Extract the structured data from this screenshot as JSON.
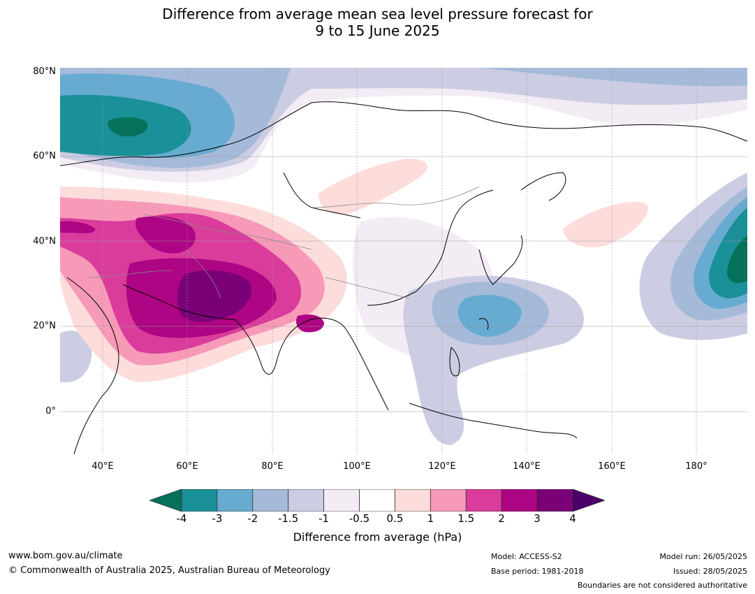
{
  "title_line1": "Difference from average mean sea level pressure forecast for",
  "title_line2": "9 to 15 June 2025",
  "lat_labels": [
    "80°N",
    "60°N",
    "40°N",
    "20°N",
    "0°"
  ],
  "lon_labels": [
    "40°E",
    "60°E",
    "80°E",
    "100°E",
    "120°E",
    "140°E",
    "160°E",
    "180°"
  ],
  "colorbar": {
    "ticks": [
      "-4",
      "-3",
      "-2",
      "-1.5",
      "-1",
      "-0.5",
      "0.5",
      "1",
      "1.5",
      "2",
      "3",
      "4"
    ],
    "colors": [
      "#05715b",
      "#1a9098",
      "#67abd1",
      "#a5bad9",
      "#cccde2",
      "#f3ecf4",
      "#ffffff",
      "#fddcdc",
      "#f79ab8",
      "#da3c9c",
      "#ad0583",
      "#7a0077",
      "#4a006a"
    ],
    "label": "Difference from average (hPa)"
  },
  "footer": {
    "url": "www.bom.gov.au/climate",
    "copyright": "© Commonwealth of Australia 2025, Australian Bureau of Meteorology",
    "model": "Model: ACCESS-S2",
    "base_period": "Base period: 1981-2018",
    "model_run": "Model run: 26/05/2025",
    "issued": "Issued: 28/05/2025",
    "boundaries": "Boundaries are not considered authoritative"
  }
}
